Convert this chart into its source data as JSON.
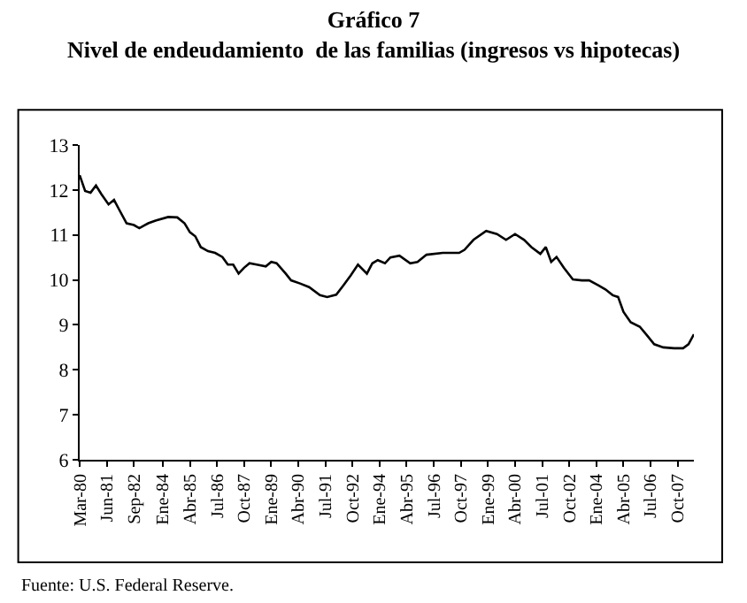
{
  "chart_data": {
    "type": "line",
    "title": "Gráfico 7",
    "subtitle": "Nivel de endeudamiento  de las familias (ingresos vs hipotecas)",
    "x": [
      "1980-03",
      "1980-06",
      "1980-09",
      "1980-12",
      "1981-03",
      "1981-07",
      "1981-10",
      "1982-01",
      "1982-05",
      "1982-09",
      "1982-12",
      "1983-05",
      "1983-09",
      "1984-04",
      "1984-09",
      "1985-01",
      "1985-04",
      "1985-07",
      "1985-10",
      "1986-02",
      "1986-06",
      "1986-10",
      "1987-01",
      "1987-04",
      "1987-07",
      "1987-10",
      "1988-01",
      "1988-05",
      "1988-10",
      "1989-01",
      "1989-04",
      "1989-09",
      "1989-12",
      "1990-05",
      "1990-10",
      "1991-04",
      "1991-08",
      "1992-01",
      "1992-05",
      "1992-09",
      "1993-01",
      "1993-06",
      "1993-09",
      "1993-12",
      "1994-04",
      "1994-07",
      "1994-12",
      "1995-06",
      "1995-10",
      "1996-03",
      "1996-12",
      "1997-09",
      "1997-12",
      "1998-05",
      "1998-12",
      "1999-06",
      "1999-11",
      "2000-04",
      "2000-09",
      "2001-01",
      "2001-06",
      "2001-09",
      "2001-12",
      "2002-03",
      "2002-07",
      "2002-12",
      "2003-05",
      "2003-09",
      "2004-02",
      "2004-06",
      "2004-10",
      "2005-01",
      "2005-04",
      "2005-08",
      "2006-01",
      "2006-05",
      "2006-09",
      "2007-02",
      "2007-08",
      "2008-01",
      "2008-04",
      "2008-07"
    ],
    "series": [
      {
        "color": "#000000",
        "values": [
          12.33,
          11.98,
          11.94,
          12.1,
          11.91,
          11.68,
          11.78,
          11.55,
          11.26,
          11.22,
          11.15,
          11.26,
          11.32,
          11.4,
          11.39,
          11.26,
          11.06,
          10.97,
          10.73,
          10.64,
          10.6,
          10.51,
          10.34,
          10.34,
          10.14,
          10.27,
          10.37,
          10.34,
          10.3,
          10.4,
          10.37,
          10.14,
          9.99,
          9.92,
          9.84,
          9.66,
          9.62,
          9.67,
          9.88,
          10.1,
          10.34,
          10.14,
          10.37,
          10.44,
          10.37,
          10.5,
          10.54,
          10.37,
          10.4,
          10.56,
          10.6,
          10.6,
          10.67,
          10.89,
          11.09,
          11.02,
          10.89,
          11.02,
          10.89,
          10.73,
          10.58,
          10.73,
          10.4,
          10.51,
          10.27,
          10.01,
          9.99,
          9.99,
          9.88,
          9.79,
          9.66,
          9.62,
          9.29,
          9.06,
          8.96,
          8.77,
          8.57,
          8.5,
          8.48,
          8.48,
          8.57,
          8.79
        ]
      }
    ],
    "xlim": [
      "1980-03",
      "2008-07"
    ],
    "xticks": [
      {
        "value": "1980-03",
        "label": "Mar-80"
      },
      {
        "value": "1981-06",
        "label": "Jun-81"
      },
      {
        "value": "1982-09",
        "label": "Sep-82"
      },
      {
        "value": "1984-01",
        "label": "Ene-84"
      },
      {
        "value": "1985-04",
        "label": "Abr-85"
      },
      {
        "value": "1986-07",
        "label": "Jul-86"
      },
      {
        "value": "1987-10",
        "label": "Oct-87"
      },
      {
        "value": "1989-01",
        "label": "Ene-89"
      },
      {
        "value": "1990-04",
        "label": "Abr-90"
      },
      {
        "value": "1991-07",
        "label": "Jul-91"
      },
      {
        "value": "1992-10",
        "label": "Oct-92"
      },
      {
        "value": "1994-01",
        "label": "Ene-94"
      },
      {
        "value": "1995-04",
        "label": "Abr-95"
      },
      {
        "value": "1996-07",
        "label": "Jul-96"
      },
      {
        "value": "1997-10",
        "label": "Oct-97"
      },
      {
        "value": "1999-01",
        "label": "Ene-99"
      },
      {
        "value": "2000-04",
        "label": "Abr-00"
      },
      {
        "value": "2001-07",
        "label": "Jul-01"
      },
      {
        "value": "2002-10",
        "label": "Oct-02"
      },
      {
        "value": "2004-01",
        "label": "Ene-04"
      },
      {
        "value": "2005-04",
        "label": "Abr-05"
      },
      {
        "value": "2006-07",
        "label": "Jul-06"
      },
      {
        "value": "2007-10",
        "label": "Oct-07"
      }
    ],
    "ylim": [
      6,
      13
    ],
    "yticks": [
      6,
      7,
      8,
      9,
      10,
      11,
      12,
      13
    ],
    "marker": "none",
    "line_style": "solid",
    "annotations": [
      "Fuente: U.S. Federal Reserve."
    ]
  }
}
